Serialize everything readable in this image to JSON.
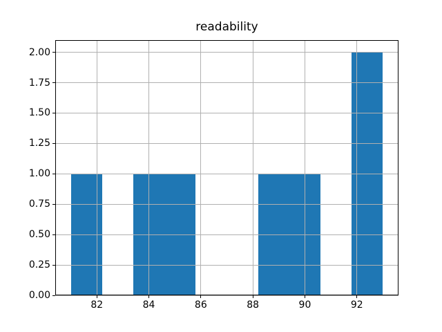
{
  "figure": {
    "background": "#ffffff"
  },
  "chart_data": {
    "type": "bar",
    "subtype": "histogram",
    "title": "readability",
    "xlabel": "",
    "ylabel": "",
    "bin_edges": [
      81.0,
      82.2,
      83.4,
      84.6,
      85.8,
      87.0,
      88.2,
      89.4,
      90.6,
      91.8,
      93.0
    ],
    "counts": [
      1,
      0,
      1,
      1,
      0,
      0,
      1,
      1,
      0,
      2
    ],
    "xlim": [
      80.4,
      93.6
    ],
    "ylim": [
      0,
      2.1
    ],
    "x_ticks": [
      82,
      84,
      86,
      88,
      90,
      92
    ],
    "x_tick_labels": [
      "82",
      "84",
      "86",
      "88",
      "90",
      "92"
    ],
    "y_ticks": [
      0,
      0.25,
      0.5,
      0.75,
      1,
      1.25,
      1.5,
      1.75,
      2
    ],
    "y_tick_labels": [
      "0.00",
      "0.25",
      "0.50",
      "0.75",
      "1.00",
      "1.25",
      "1.50",
      "1.75",
      "2.00"
    ],
    "bar_color": "#1f77b4",
    "grid": true,
    "grid_color": "#b0b0b0",
    "grid_above_bars": true,
    "spine_color": "#000000",
    "tick_label_color": "#000000",
    "legend": "none"
  }
}
